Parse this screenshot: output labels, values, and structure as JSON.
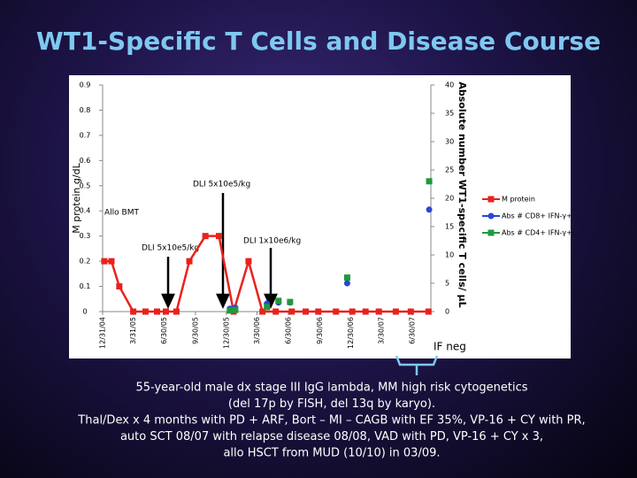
{
  "chart_data": {
    "type": "line",
    "title": "WT1-Specific T Cells and Disease Course",
    "y_label": "M protein g/dL",
    "y2_label": "Absolute number WT1-specific T cells/ µL",
    "x": [
      "1/5/05",
      "1/26/05",
      "2/18/05",
      "3/31/05",
      "5/6/05",
      "6/9/05",
      "7/5/05",
      "8/5/05",
      "9/12/05",
      "10/29/05",
      "12/8/05",
      "1/20/06",
      "3/5/06",
      "4/15/06",
      "5/24/06",
      "7/10/06",
      "8/20/06",
      "9/26/06",
      "11/17/06",
      "1/4/07",
      "2/12/07",
      "3/23/07",
      "5/12/07",
      "6/25/07",
      "8/16/07"
    ],
    "xlim": [
      "12/31/04",
      "8/23/07"
    ],
    "xticks": [
      "12/31/04",
      "3/31/05",
      "6/30/05",
      "9/30/05",
      "12/30/05",
      "3/30/06",
      "6/30/06",
      "9/30/06",
      "12/30/06",
      "3/30/07",
      "6/30/07"
    ],
    "ylim": [
      0,
      0.9
    ],
    "yticks": [
      0,
      0.1,
      0.2,
      0.3,
      0.4,
      0.5,
      0.6,
      0.7,
      0.8,
      0.9
    ],
    "y2lim": [
      0,
      40
    ],
    "y2ticks": [
      0,
      5,
      10,
      15,
      20,
      25,
      30,
      35,
      40
    ],
    "legend": "right",
    "series": [
      {
        "name": "M protein",
        "color": "#e8221c",
        "marker": "square",
        "line": true,
        "values": [
          0.2,
          0.2,
          0.1,
          0,
          0,
          0,
          0,
          0,
          0.2,
          0.3,
          0.3,
          0,
          0.2,
          0,
          0,
          0,
          0,
          0,
          0,
          0,
          0,
          0,
          0,
          0,
          0
        ]
      },
      {
        "name": "Abs # CD8+ IFN-γ+",
        "color": "#2846d8",
        "marker": "circle",
        "line": false,
        "axis": "y2",
        "x": [
          "1/9/06",
          "1/25/06",
          "4/28/06",
          "6/1/06",
          "7/5/06",
          "12/20/06",
          "8/18/07"
        ],
        "values": [
          0.5,
          0.7,
          1.4,
          1.6,
          1.6,
          5,
          18
        ]
      },
      {
        "name": "Abs # CD4+ IFN-γ+",
        "color": "#1f9a3c",
        "marker": "square",
        "line": false,
        "axis": "y2",
        "x": [
          "1/9/06",
          "1/25/06",
          "4/28/06",
          "6/1/06",
          "7/5/06",
          "12/20/06",
          "8/18/07"
        ],
        "values": [
          0.2,
          0.3,
          0.8,
          1.9,
          1.7,
          6,
          23
        ]
      }
    ],
    "annotations": [
      "Allo BMT",
      "DLI 5x10e5/kg",
      "DLI 5x10e5/kg",
      "DLI 1x10e6/kg"
    ],
    "note": "IF neg"
  },
  "caption": [
    "55-year-old male dx stage III IgG lambda, MM high risk cytogenetics",
    "(del 17p by FISH, del 13q by karyo).",
    "Thal/Dex x 4 months with PD + ARF, Bort – MI – CAGB with EF 35%, VP-16 + CY with PR,",
    "auto SCT 08/07 with relapse disease 08/08, VAD with PD, VP-16 + CY x 3,",
    "allo HSCT from MUD (10/10) in 03/09."
  ]
}
